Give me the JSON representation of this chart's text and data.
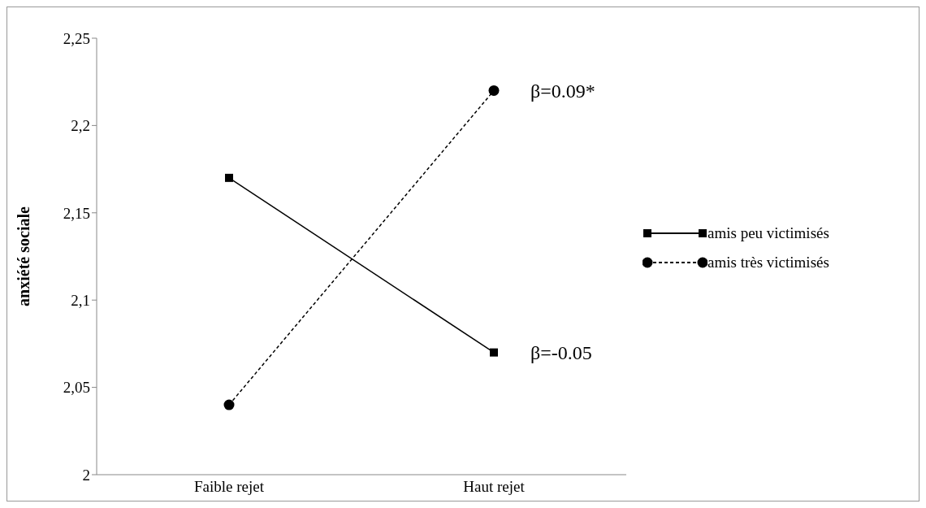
{
  "chart_data": {
    "type": "line",
    "ylabel": "anxiété sociale",
    "categories": [
      "Faible rejet",
      "Haut rejet"
    ],
    "series": [
      {
        "name": "amis peu victimisés",
        "color": "#000000",
        "values": [
          2.17,
          2.07
        ],
        "marker": "square",
        "line_style": "solid"
      },
      {
        "name": "amis très victimisés",
        "color": "#000000",
        "values": [
          2.04,
          2.22
        ],
        "marker": "circle",
        "line_style": "dashed"
      }
    ],
    "ylim": [
      2,
      2.25
    ],
    "yticks": [
      {
        "value": 2,
        "label": "2"
      },
      {
        "value": 2.05,
        "label": "2,05"
      },
      {
        "value": 2.1,
        "label": "2,1"
      },
      {
        "value": 2.15,
        "label": "2,15"
      },
      {
        "value": 2.2,
        "label": "2,2"
      },
      {
        "value": 2.25,
        "label": "2,25"
      }
    ],
    "annotations": [
      {
        "text": "β=0.09*",
        "x": "Haut rejet",
        "y": 2.22
      },
      {
        "text": "β=-0.05",
        "x": "Haut rejet",
        "y": 2.07
      }
    ],
    "legend": "right",
    "grid": false
  }
}
